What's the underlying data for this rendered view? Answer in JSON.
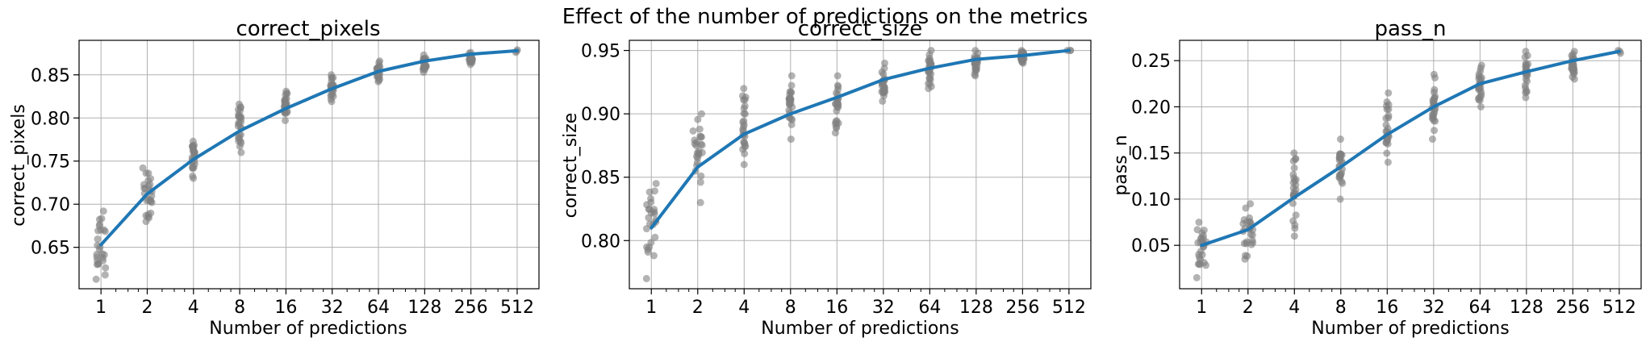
{
  "figure": {
    "suptitle": "Effect of the number of predictions on the metrics"
  },
  "colors": {
    "line": "#1f77b4",
    "scatter": "#808080",
    "grid": "#b0b0b0",
    "axes": "#000000"
  },
  "chart_data": [
    {
      "type": "line",
      "title": "correct_pixels",
      "xlabel": "Number of predictions",
      "ylabel": "correct_pixels",
      "x_scale": "log2",
      "grid": true,
      "xticks": [
        1,
        2,
        4,
        8,
        16,
        32,
        64,
        128,
        256,
        512
      ],
      "xtick_labels": [
        "1",
        "2",
        "4",
        "8",
        "16",
        "32",
        "64",
        "128",
        "256",
        "512"
      ],
      "xlim": [
        0.72,
        710
      ],
      "ylim": [
        0.602,
        0.89
      ],
      "yticks": [
        0.65,
        0.7,
        0.75,
        0.8,
        0.85
      ],
      "ytick_labels": [
        "0.65",
        "0.70",
        "0.75",
        "0.80",
        "0.85"
      ],
      "series": [
        {
          "x": [
            1,
            2,
            4,
            8,
            16,
            32,
            64,
            128,
            256,
            512
          ],
          "values": [
            0.653,
            0.712,
            0.752,
            0.785,
            0.811,
            0.834,
            0.854,
            0.866,
            0.874,
            0.878
          ]
        }
      ],
      "scatter_ranges": [
        [
          0.613,
          0.692
        ],
        [
          0.68,
          0.742
        ],
        [
          0.73,
          0.773
        ],
        [
          0.76,
          0.816
        ],
        [
          0.797,
          0.831
        ],
        [
          0.819,
          0.85
        ],
        [
          0.842,
          0.866
        ],
        [
          0.853,
          0.873
        ],
        [
          0.862,
          0.876
        ],
        [
          0.876,
          0.879
        ]
      ]
    },
    {
      "type": "line",
      "title": "correct_size",
      "xlabel": "Number of predictions",
      "ylabel": "correct_size",
      "x_scale": "log2",
      "grid": true,
      "xticks": [
        1,
        2,
        4,
        8,
        16,
        32,
        64,
        128,
        256,
        512
      ],
      "xtick_labels": [
        "1",
        "2",
        "4",
        "8",
        "16",
        "32",
        "64",
        "128",
        "256",
        "512"
      ],
      "xlim": [
        0.72,
        710
      ],
      "ylim": [
        0.762,
        0.958
      ],
      "yticks": [
        0.8,
        0.85,
        0.9,
        0.95
      ],
      "ytick_labels": [
        "0.80",
        "0.85",
        "0.90",
        "0.95"
      ],
      "series": [
        {
          "x": [
            1,
            2,
            4,
            8,
            16,
            32,
            64,
            128,
            256,
            512
          ],
          "values": [
            0.81,
            0.858,
            0.884,
            0.9,
            0.913,
            0.927,
            0.936,
            0.943,
            0.946,
            0.95
          ]
        }
      ],
      "scatter_ranges": [
        [
          0.77,
          0.845
        ],
        [
          0.83,
          0.9
        ],
        [
          0.86,
          0.92
        ],
        [
          0.88,
          0.93
        ],
        [
          0.885,
          0.93
        ],
        [
          0.91,
          0.94
        ],
        [
          0.92,
          0.95
        ],
        [
          0.93,
          0.95
        ],
        [
          0.94,
          0.95
        ],
        [
          0.95,
          0.95
        ]
      ]
    },
    {
      "type": "line",
      "title": "pass_n",
      "xlabel": "Number of predictions",
      "ylabel": "pass_n",
      "x_scale": "log2",
      "grid": true,
      "xticks": [
        1,
        2,
        4,
        8,
        16,
        32,
        64,
        128,
        256,
        512
      ],
      "xtick_labels": [
        "1",
        "2",
        "4",
        "8",
        "16",
        "32",
        "64",
        "128",
        "256",
        "512"
      ],
      "xlim": [
        0.72,
        710
      ],
      "ylim": [
        0.003,
        0.272
      ],
      "yticks": [
        0.05,
        0.1,
        0.15,
        0.2,
        0.25
      ],
      "ytick_labels": [
        "0.05",
        "0.10",
        "0.15",
        "0.20",
        "0.25"
      ],
      "series": [
        {
          "x": [
            1,
            2,
            4,
            8,
            16,
            32,
            64,
            128,
            256,
            512
          ],
          "values": [
            0.05,
            0.067,
            0.102,
            0.135,
            0.17,
            0.2,
            0.225,
            0.238,
            0.25,
            0.26
          ]
        }
      ],
      "scatter_ranges": [
        [
          0.015,
          0.075
        ],
        [
          0.035,
          0.095
        ],
        [
          0.06,
          0.15
        ],
        [
          0.1,
          0.165
        ],
        [
          0.14,
          0.215
        ],
        [
          0.165,
          0.235
        ],
        [
          0.2,
          0.245
        ],
        [
          0.21,
          0.26
        ],
        [
          0.23,
          0.26
        ],
        [
          0.258,
          0.261
        ]
      ]
    }
  ]
}
